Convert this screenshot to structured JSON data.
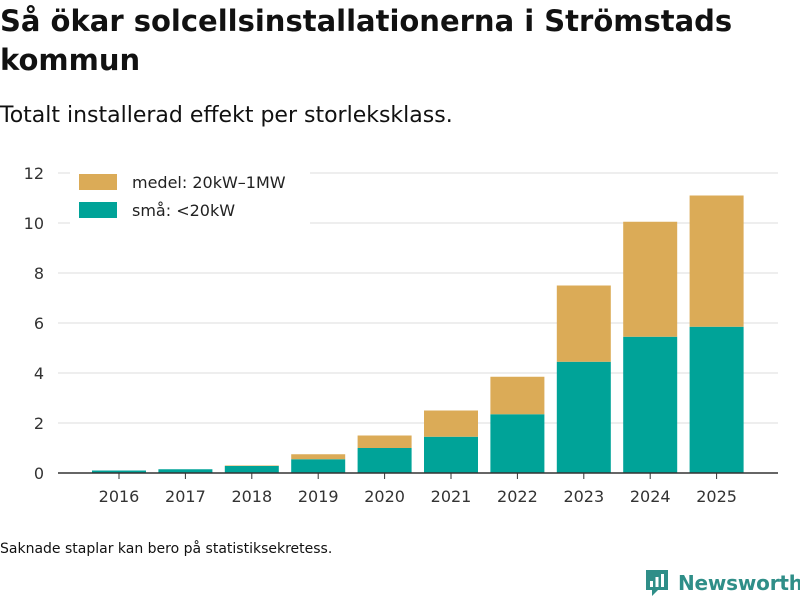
{
  "header": {
    "title": "Så ökar solcellsinstallationerna i Strömstads kommun",
    "subtitle": "Totalt installerad effekt per storleksklass."
  },
  "footer": {
    "note": "Saknade staplar kan bero på statistiksekretess.",
    "brand": "Newsworthy"
  },
  "colors": {
    "small": "#00a398",
    "medium": "#dbab57",
    "grid": "#dddddd",
    "axis": "#333333",
    "brand": "#2f8e88"
  },
  "chart_data": {
    "type": "bar",
    "stacked": true,
    "title": "Så ökar solcellsinstallationerna i Strömstads kommun",
    "subtitle": "Totalt installerad effekt per storleksklass.",
    "xlabel": "",
    "ylabel": "",
    "categories": [
      "2016",
      "2017",
      "2018",
      "2019",
      "2020",
      "2021",
      "2022",
      "2023",
      "2024",
      "2025"
    ],
    "series": [
      {
        "name": "små: <20kW",
        "color": "#00a398",
        "values": [
          0.1,
          0.15,
          0.28,
          0.55,
          1.0,
          1.45,
          2.35,
          4.45,
          5.45,
          5.85
        ]
      },
      {
        "name": "medel: 20kW–1MW",
        "color": "#dbab57",
        "values": [
          0.0,
          0.0,
          0.02,
          0.2,
          0.5,
          1.05,
          1.5,
          3.05,
          4.6,
          5.25
        ]
      }
    ],
    "ylim": [
      0,
      12
    ],
    "yticks": [
      0,
      2,
      4,
      6,
      8,
      10,
      12
    ],
    "grid": true,
    "legend": {
      "position": "top-left",
      "order": [
        "medel: 20kW–1MW",
        "små: <20kW"
      ]
    }
  }
}
